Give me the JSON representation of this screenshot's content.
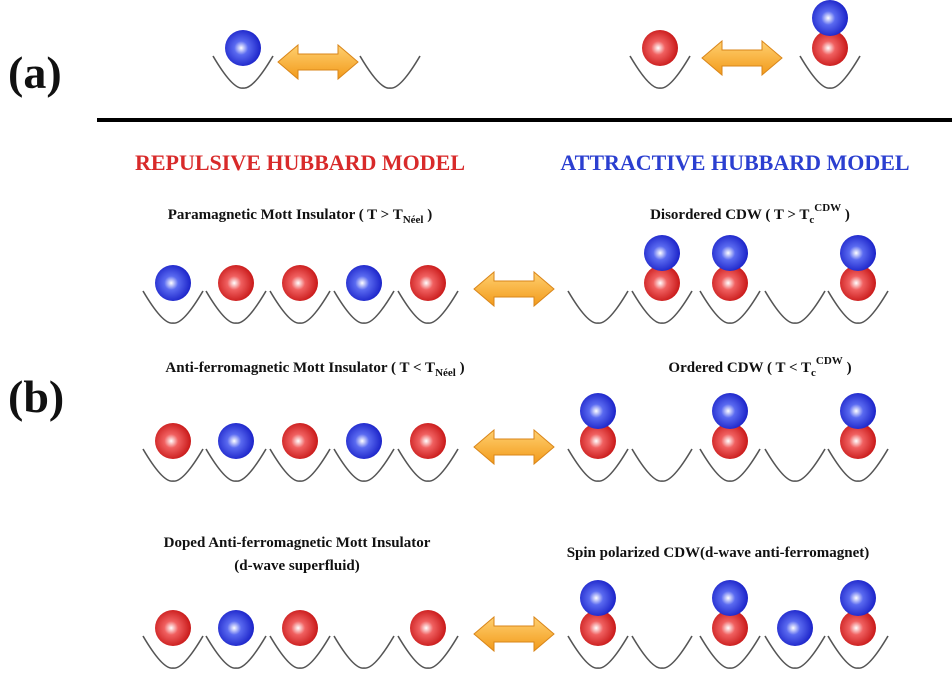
{
  "panel_a": {
    "label": "(a)"
  },
  "panel_b": {
    "label": "(b)",
    "headings": {
      "repulsive": "REPULSIVE HUBBARD MODEL",
      "attractive": "ATTRACTIVE HUBBARD MODEL"
    },
    "rows": [
      {
        "left": {
          "text": "Paramagnetic Mott Insulator ( T > T",
          "sub": "Néel",
          "end": " )"
        },
        "right": {
          "text": "Disordered CDW ( T > T",
          "sub": "c",
          "sup": "CDW",
          "end": " )"
        }
      },
      {
        "left": {
          "text": "Anti-ferromagnetic Mott Insulator ( T < T",
          "sub": "Néel",
          "end": " )"
        },
        "right": {
          "text": "Ordered CDW ( T < T",
          "sub": "c",
          "sup": "CDW",
          "end": " )"
        }
      },
      {
        "left": {
          "lines": [
            "Doped Anti-ferromagnetic Mott Insulator",
            "(d-wave superfluid)"
          ]
        },
        "right": {
          "text": "Spin polarized CDW(d-wave anti-ferromagnet)"
        }
      }
    ]
  }
}
